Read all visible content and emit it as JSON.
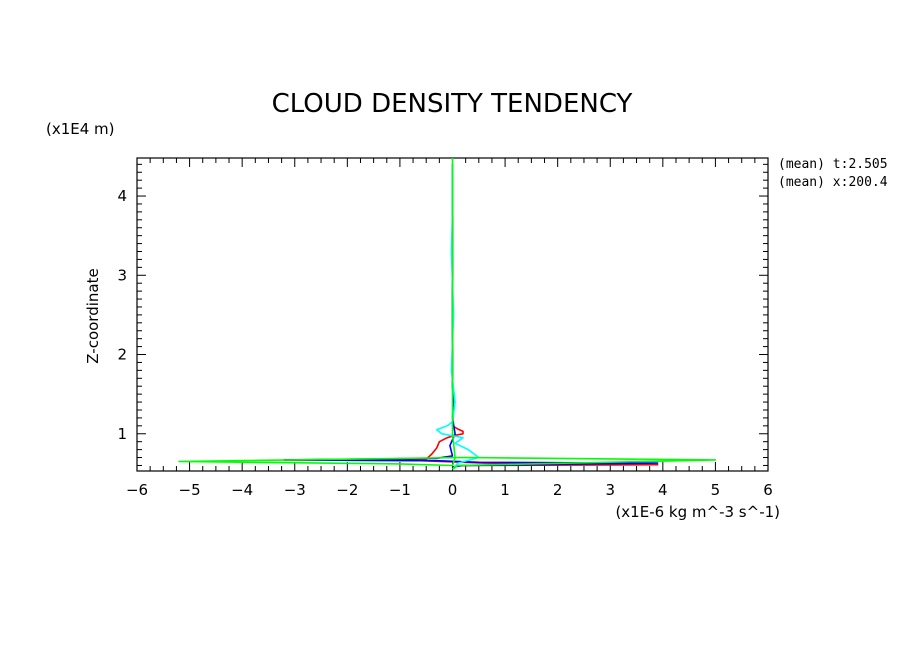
{
  "chart_data": {
    "type": "line",
    "title": "CLOUD DENSITY TENDENCY",
    "xlabel": "(x1E-6 kg m^-3 s^-1)",
    "ylabel": "Z-coordinate",
    "yunits": "(x1E4 m)",
    "xlim": [
      -6,
      6
    ],
    "ylim": [
      0.53,
      4.48
    ],
    "xticks": [
      "-6",
      "-5",
      "-4",
      "-3",
      "-2",
      "-1",
      "0",
      "1",
      "2",
      "3",
      "4",
      "5",
      "6"
    ],
    "yticks": [
      "1",
      "2",
      "3",
      "4"
    ],
    "yticks_values": [
      1,
      2,
      3,
      4
    ],
    "info": [
      "(mean) t:2.505",
      "(mean) x:200.4"
    ],
    "grid": false,
    "series": [
      {
        "color": "#ff0000",
        "points": [
          [
            0,
            0.58
          ],
          [
            0.1,
            0.6
          ],
          [
            3.9,
            0.61
          ],
          [
            0.6,
            0.63
          ],
          [
            -0.6,
            0.66
          ],
          [
            -3.2,
            0.67
          ],
          [
            -0.5,
            0.68
          ],
          [
            -0.4,
            0.74
          ],
          [
            -0.3,
            0.82
          ],
          [
            -0.25,
            0.9
          ],
          [
            -0.1,
            0.95
          ],
          [
            0.05,
            0.98
          ],
          [
            0.2,
            1.0
          ],
          [
            0.2,
            1.03
          ],
          [
            0.1,
            1.06
          ],
          [
            0,
            1.1
          ],
          [
            0.02,
            1.3
          ],
          [
            0,
            1.6
          ],
          [
            0,
            4.4
          ]
        ]
      },
      {
        "color": "#0000ff",
        "points": [
          [
            0,
            0.58
          ],
          [
            0.2,
            0.6
          ],
          [
            3.9,
            0.63
          ],
          [
            0.5,
            0.64
          ],
          [
            -0.3,
            0.66
          ],
          [
            -3.2,
            0.67
          ],
          [
            -0.3,
            0.69
          ],
          [
            0,
            0.72
          ],
          [
            -0.05,
            0.85
          ],
          [
            0.05,
            1.0
          ],
          [
            0,
            1.2
          ],
          [
            0.02,
            1.45
          ],
          [
            0,
            1.6
          ],
          [
            0,
            4.4
          ]
        ]
      },
      {
        "color": "#00ffff",
        "points": [
          [
            0,
            0.55
          ],
          [
            0.1,
            0.63
          ],
          [
            0.5,
            0.7
          ],
          [
            0.3,
            0.8
          ],
          [
            0.05,
            0.88
          ],
          [
            0.2,
            0.95
          ],
          [
            -0.2,
            1.0
          ],
          [
            -0.3,
            1.05
          ],
          [
            -0.1,
            1.1
          ],
          [
            0,
            1.15
          ],
          [
            0.05,
            1.4
          ],
          [
            -0.02,
            1.8
          ],
          [
            0.02,
            2.5
          ],
          [
            -0.02,
            3.3
          ],
          [
            0,
            3.8
          ],
          [
            0,
            4.4
          ]
        ]
      },
      {
        "color": "#00ff00",
        "points": [
          [
            0,
            0.55
          ],
          [
            0.1,
            0.6
          ],
          [
            5.0,
            0.67
          ],
          [
            0.2,
            0.7
          ],
          [
            -5.2,
            0.65
          ],
          [
            -1.0,
            0.62
          ],
          [
            0,
            0.6
          ],
          [
            0.05,
            0.7
          ],
          [
            0,
            1.0
          ],
          [
            0,
            4.48
          ]
        ]
      }
    ]
  }
}
